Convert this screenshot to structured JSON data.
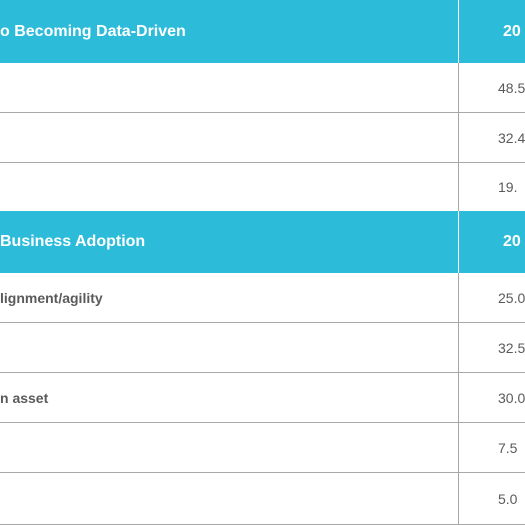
{
  "sections": [
    {
      "header_label": "o Becoming Data-Driven",
      "header_year": "20",
      "rows": [
        {
          "label": "",
          "value": "48.5"
        },
        {
          "label": "",
          "value": "32.4"
        },
        {
          "label": "",
          "value": "19."
        }
      ]
    },
    {
      "header_label": "Business Adoption",
      "header_year": "20",
      "rows": [
        {
          "label": "lignment/agility",
          "value": "25.0"
        },
        {
          "label": "",
          "value": "32.5"
        },
        {
          "label": "n asset",
          "value": "30.0"
        },
        {
          "label": "",
          "value": "7.5"
        },
        {
          "label": "",
          "value": "5.0"
        }
      ]
    }
  ],
  "colors": {
    "header_bg": "#2cbcda",
    "header_text": "#ffffff",
    "divider": "#a8a8a8",
    "body_text": "#5a5a5a"
  }
}
